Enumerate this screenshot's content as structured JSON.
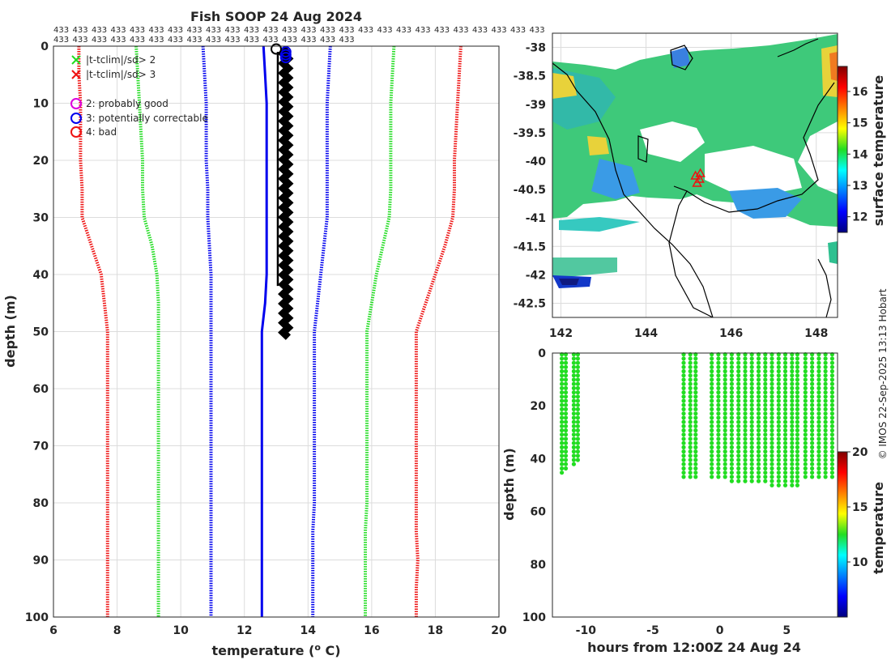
{
  "title": "Fish SOOP 24 Aug 2024",
  "id_row1": [
    "433",
    "433",
    "433",
    "433",
    "433",
    "433",
    "433",
    "433",
    "433",
    "433",
    "433",
    "433",
    "433",
    "433",
    "433",
    "433",
    "433",
    "433",
    "433",
    "433",
    "433",
    "433",
    "433",
    "433",
    "433",
    "433"
  ],
  "id_row2": [
    "433",
    "433",
    "433",
    "433",
    "433",
    "433",
    "433",
    "433",
    "433",
    "433",
    "433",
    "433",
    "433",
    "433",
    "433",
    "433"
  ],
  "copyright": "© IMOS 22-Sep-2025 13:13 Hobart",
  "colors": {
    "green": "#22dd22",
    "blue": "#0000ee",
    "red": "#ee1111",
    "magenta": "#dd00dd",
    "black": "#000000"
  },
  "legend": [
    {
      "marker": "x",
      "color": "#22dd22",
      "label": "|t-tclim|/sd> 2"
    },
    {
      "marker": "x",
      "color": "#ee1111",
      "label": "|t-tclim|/sd> 3"
    },
    {
      "marker": "o",
      "color": "#dd00dd",
      "label": "2: probably good"
    },
    {
      "marker": "o",
      "color": "#0000ee",
      "label": "3: potentially correctable"
    },
    {
      "marker": "o",
      "color": "#ee1111",
      "label": "4: bad"
    }
  ],
  "chart_data": [
    {
      "id": "profile",
      "type": "line",
      "title": "Fish SOOP 24 Aug 2024",
      "xlabel": "temperature (",
      "xlabel_sup": "o",
      "xlabel_end": " C)",
      "ylabel": "depth (m)",
      "xlim": [
        6,
        20
      ],
      "ylim": [
        0,
        100
      ],
      "y_reversed": true,
      "grid": true,
      "xticks": [
        6,
        8,
        10,
        12,
        14,
        16,
        18,
        20
      ],
      "yticks": [
        0,
        10,
        20,
        30,
        40,
        50,
        60,
        70,
        80,
        90,
        100
      ],
      "depths": [
        0,
        5,
        10,
        15,
        20,
        25,
        30,
        35,
        40,
        45,
        50,
        55,
        60,
        65,
        70,
        75,
        80,
        85,
        90,
        95,
        100
      ],
      "series": [
        {
          "name": "clim -3sd",
          "color": "#ee1111",
          "style": "dotted",
          "values": [
            6.8,
            6.8,
            6.85,
            6.85,
            6.85,
            6.9,
            6.9,
            7.2,
            7.5,
            7.6,
            7.7,
            7.7,
            7.7,
            7.7,
            7.7,
            7.7,
            7.7,
            7.7,
            7.7,
            7.7,
            7.7
          ]
        },
        {
          "name": "clim -2sd",
          "color": "#22dd22",
          "style": "dotted",
          "values": [
            8.6,
            8.65,
            8.7,
            8.75,
            8.8,
            8.8,
            8.85,
            9.1,
            9.25,
            9.3,
            9.3,
            9.3,
            9.3,
            9.3,
            9.3,
            9.3,
            9.3,
            9.3,
            9.3,
            9.3,
            9.3
          ]
        },
        {
          "name": "clim -1sd",
          "color": "#0000ee",
          "style": "dotted",
          "values": [
            10.7,
            10.75,
            10.8,
            10.8,
            10.8,
            10.85,
            10.85,
            10.9,
            10.95,
            10.95,
            10.95,
            10.95,
            10.95,
            10.95,
            10.95,
            10.95,
            10.95,
            10.95,
            10.95,
            10.95,
            10.95
          ]
        },
        {
          "name": "clim mean",
          "color": "#0000ee",
          "style": "solid",
          "values": [
            12.6,
            12.65,
            12.7,
            12.7,
            12.7,
            12.7,
            12.7,
            12.7,
            12.7,
            12.65,
            12.55,
            12.55,
            12.55,
            12.55,
            12.55,
            12.55,
            12.55,
            12.55,
            12.55,
            12.55,
            12.55
          ]
        },
        {
          "name": "clim +1sd",
          "color": "#0000ee",
          "style": "dotted",
          "values": [
            14.7,
            14.65,
            14.6,
            14.6,
            14.6,
            14.6,
            14.6,
            14.5,
            14.4,
            14.3,
            14.2,
            14.2,
            14.2,
            14.2,
            14.2,
            14.2,
            14.2,
            14.15,
            14.15,
            14.15,
            14.15
          ]
        },
        {
          "name": "clim +2sd",
          "color": "#22dd22",
          "style": "dotted",
          "values": [
            16.7,
            16.65,
            16.6,
            16.6,
            16.6,
            16.6,
            16.55,
            16.35,
            16.15,
            16.0,
            15.85,
            15.85,
            15.85,
            15.85,
            15.85,
            15.85,
            15.85,
            15.8,
            15.8,
            15.8,
            15.8
          ]
        },
        {
          "name": "clim +3sd",
          "color": "#ee1111",
          "style": "dotted",
          "values": [
            18.8,
            18.75,
            18.7,
            18.65,
            18.6,
            18.6,
            18.55,
            18.3,
            18.0,
            17.7,
            17.4,
            17.4,
            17.4,
            17.4,
            17.4,
            17.4,
            17.4,
            17.4,
            17.45,
            17.4,
            17.4
          ]
        }
      ],
      "profiles": [
        {
          "name": "obs profile",
          "color": "#000000",
          "x_from": 13.0,
          "x_to": 13.45,
          "y_from": 0.5,
          "y_to": 51
        }
      ],
      "flag_circles": [
        {
          "x": 13.3,
          "y": 1.0,
          "color": "#0000ee"
        },
        {
          "x": 13.3,
          "y": 1.5,
          "color": "#0000ee"
        },
        {
          "x": 13.3,
          "y": 2.0,
          "color": "#0000ee"
        },
        {
          "x": 13.0,
          "y": 0.5,
          "color": "#000000"
        }
      ]
    },
    {
      "id": "map",
      "type": "heatmap",
      "xlim": [
        141.8,
        148.5
      ],
      "ylim": [
        -42.75,
        -37.75
      ],
      "xticks": [
        142,
        144,
        146,
        148
      ],
      "yticks": [
        -38,
        -38.5,
        -39,
        -39.5,
        -40,
        -40.5,
        -41,
        -41.5,
        -42,
        -42.5
      ],
      "grid": true,
      "colorbar": {
        "label": "surface temperature",
        "ticks": [
          12,
          13,
          14,
          15,
          16
        ],
        "range": [
          11.5,
          16.8
        ]
      },
      "marker": {
        "lon": 145.2,
        "lat": -40.4,
        "color": "#ee1111"
      }
    },
    {
      "id": "hovmoller",
      "type": "scatter",
      "xlabel": "hours from 12:00Z 24 Aug 24",
      "ylabel": "depth (m)",
      "xlim": [
        -12.5,
        8.8
      ],
      "ylim": [
        0,
        100
      ],
      "y_reversed": true,
      "xticks": [
        -10,
        -5,
        0,
        5
      ],
      "yticks": [
        0,
        20,
        40,
        60,
        80,
        100
      ],
      "colorbar": {
        "label": "temperature",
        "ticks": [
          10,
          15,
          20
        ],
        "range": [
          5,
          20
        ]
      },
      "point_value": 13.3,
      "casts": [
        {
          "x": -11.8,
          "dmax": 46
        },
        {
          "x": -11.5,
          "dmax": 45
        },
        {
          "x": -10.9,
          "dmax": 43
        },
        {
          "x": -10.6,
          "dmax": 42
        },
        {
          "x": -2.7,
          "dmax": 47
        },
        {
          "x": -2.2,
          "dmax": 47
        },
        {
          "x": -1.8,
          "dmax": 47
        },
        {
          "x": -0.6,
          "dmax": 48
        },
        {
          "x": -0.1,
          "dmax": 48
        },
        {
          "x": 0.4,
          "dmax": 48
        },
        {
          "x": 0.9,
          "dmax": 49
        },
        {
          "x": 1.4,
          "dmax": 49
        },
        {
          "x": 1.9,
          "dmax": 49
        },
        {
          "x": 2.4,
          "dmax": 50
        },
        {
          "x": 2.9,
          "dmax": 50
        },
        {
          "x": 3.4,
          "dmax": 50
        },
        {
          "x": 3.9,
          "dmax": 51
        },
        {
          "x": 4.4,
          "dmax": 51
        },
        {
          "x": 4.9,
          "dmax": 51
        },
        {
          "x": 5.4,
          "dmax": 51
        },
        {
          "x": 5.8,
          "dmax": 51
        },
        {
          "x": 6.4,
          "dmax": 48
        },
        {
          "x": 6.9,
          "dmax": 48
        },
        {
          "x": 7.4,
          "dmax": 48
        },
        {
          "x": 7.9,
          "dmax": 48
        },
        {
          "x": 8.4,
          "dmax": 48
        }
      ]
    }
  ]
}
